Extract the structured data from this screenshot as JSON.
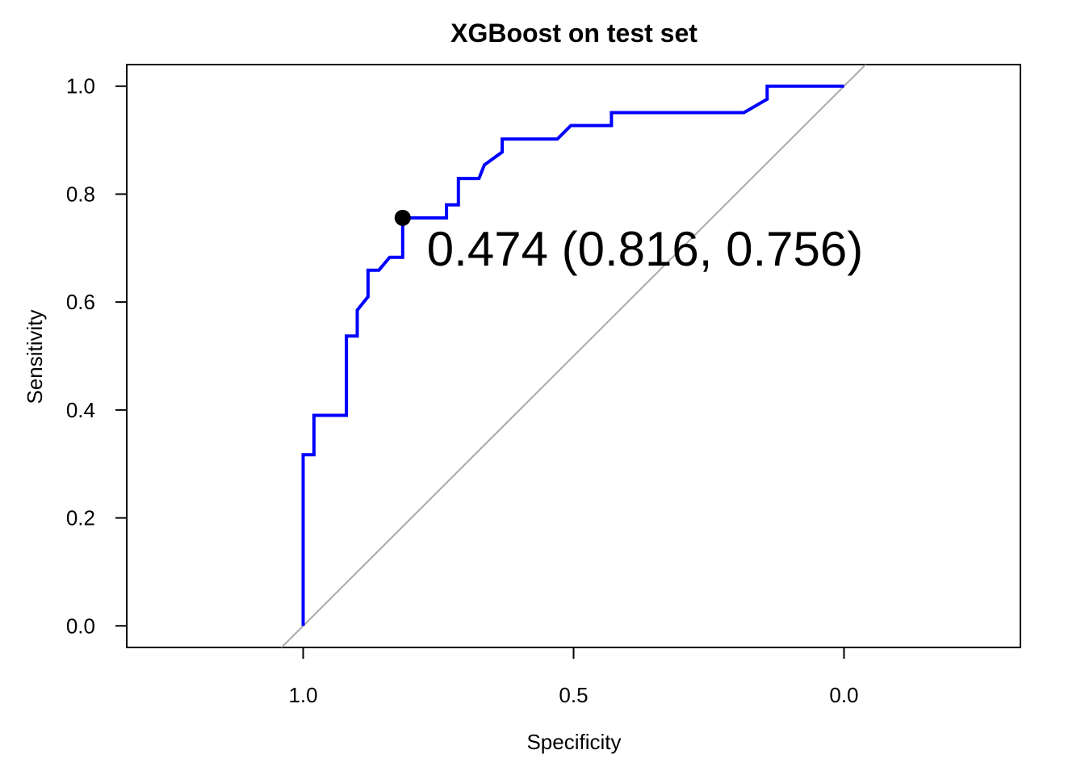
{
  "chart_data": {
    "type": "line",
    "title": "XGBoost on test set",
    "xlabel": "Specificity",
    "ylabel": "Sensitivity",
    "x_reversed": true,
    "xlim": [
      1.3262,
      -0.3262
    ],
    "ylim": [
      -0.04,
      1.04
    ],
    "x_ticks": [
      1.0,
      0.5,
      0.0
    ],
    "x_tick_labels": [
      "1.0",
      "0.5",
      "0.0"
    ],
    "y_ticks": [
      0.0,
      0.2,
      0.4,
      0.6,
      0.8,
      1.0
    ],
    "y_tick_labels": [
      "0.0",
      "0.2",
      "0.4",
      "0.6",
      "0.8",
      "1.0"
    ],
    "grid": false,
    "colors": {
      "roc": "#0000ff",
      "reference": "#aaaaaa",
      "point": "#000000"
    },
    "series": [
      {
        "specificity": [
          1.0,
          1.0,
          0.98,
          0.98,
          0.92,
          0.92,
          0.9,
          0.9,
          0.88,
          0.88,
          0.86,
          0.84,
          0.816,
          0.816,
          0.735,
          0.735,
          0.713,
          0.713,
          0.675,
          0.665,
          0.632,
          0.632,
          0.53,
          0.505,
          0.43,
          0.43,
          0.185,
          0.142,
          0.142,
          0.0
        ],
        "sensitivity": [
          0.0,
          0.317,
          0.317,
          0.39,
          0.39,
          0.537,
          0.537,
          0.585,
          0.61,
          0.659,
          0.659,
          0.683,
          0.683,
          0.756,
          0.756,
          0.78,
          0.78,
          0.829,
          0.829,
          0.854,
          0.878,
          0.902,
          0.902,
          0.927,
          0.927,
          0.951,
          0.951,
          0.976,
          1.0,
          1.0
        ]
      }
    ],
    "reference_line": {
      "from": [
        1.0,
        0.0
      ],
      "to": [
        0.0,
        1.0
      ]
    },
    "best_point": {
      "specificity": 0.816,
      "sensitivity": 0.756
    },
    "annotation": "0.474 (0.816, 0.756)"
  }
}
